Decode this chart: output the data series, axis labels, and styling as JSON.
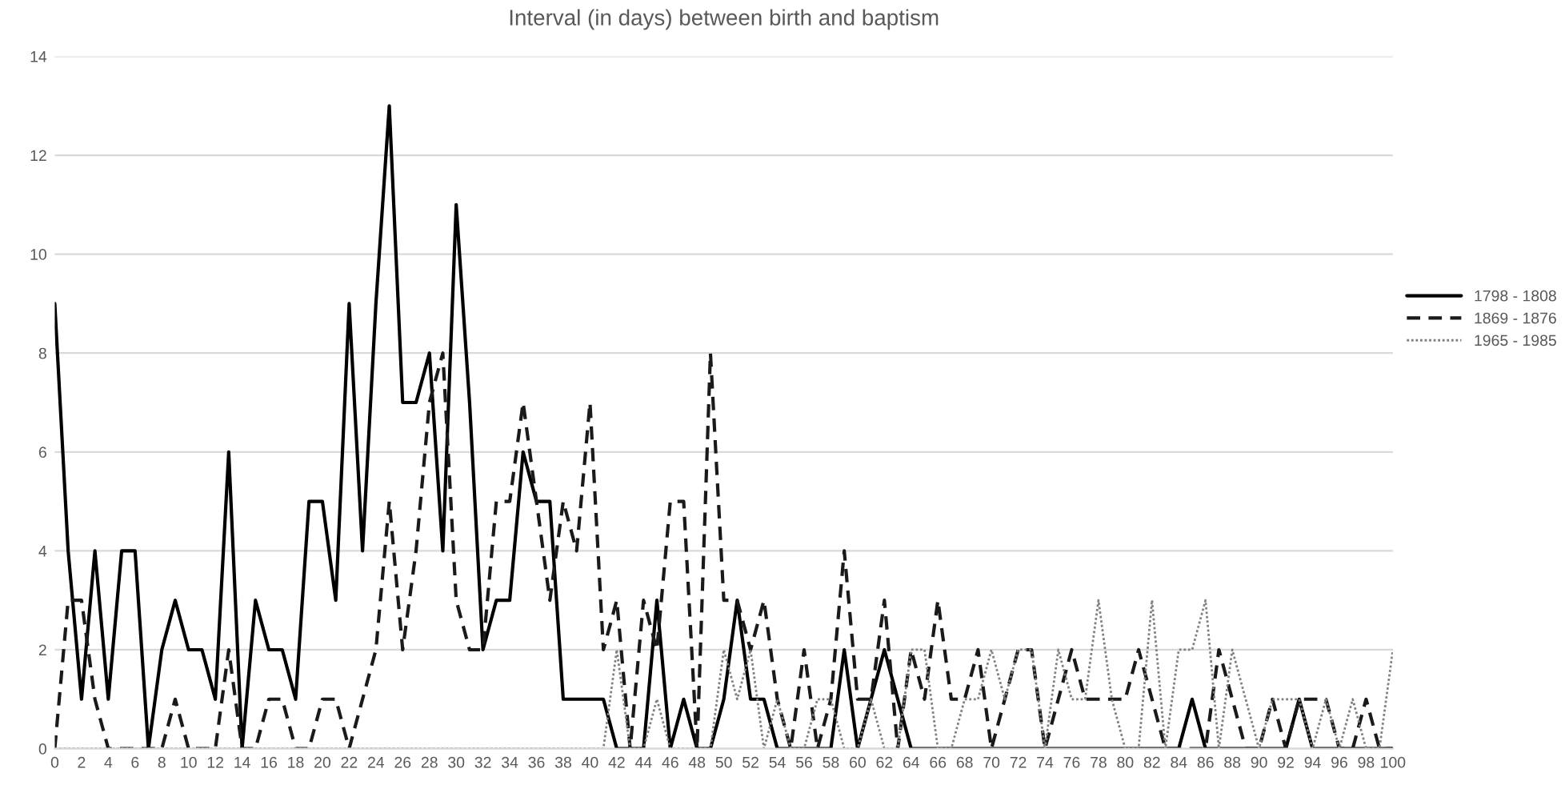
{
  "chart_data": {
    "type": "line",
    "title": "Interval (in days) between birth and baptism",
    "x": [
      0,
      1,
      2,
      3,
      4,
      5,
      6,
      7,
      8,
      9,
      10,
      11,
      12,
      13,
      14,
      15,
      16,
      17,
      18,
      19,
      20,
      21,
      22,
      23,
      24,
      25,
      26,
      27,
      28,
      29,
      30,
      31,
      32,
      33,
      34,
      35,
      36,
      37,
      38,
      39,
      40,
      41,
      42,
      43,
      44,
      45,
      46,
      47,
      48,
      49,
      50,
      51,
      52,
      53,
      54,
      55,
      56,
      57,
      58,
      59,
      60,
      61,
      62,
      63,
      64,
      65,
      66,
      67,
      68,
      69,
      70,
      71,
      72,
      73,
      74,
      75,
      76,
      77,
      78,
      79,
      80,
      81,
      82,
      83,
      84,
      85,
      86,
      87,
      88,
      89,
      90,
      91,
      92,
      93,
      94,
      95,
      96,
      97,
      98,
      99,
      100
    ],
    "series": [
      {
        "name": "1798 - 1808",
        "color": "#000000",
        "line_style": "solid",
        "values": [
          9,
          4,
          1,
          4,
          1,
          4,
          4,
          0,
          2,
          3,
          2,
          2,
          1,
          6,
          0,
          3,
          2,
          2,
          1,
          5,
          5,
          3,
          9,
          4,
          9,
          13,
          7,
          7,
          8,
          4,
          11,
          7,
          2,
          3,
          3,
          6,
          5,
          5,
          1,
          1,
          1,
          1,
          0,
          0,
          0,
          3,
          0,
          1,
          0,
          0,
          1,
          3,
          1,
          1,
          0,
          0,
          0,
          0,
          0,
          2,
          0,
          1,
          2,
          1,
          0,
          0,
          0,
          0,
          0,
          0,
          0,
          0,
          0,
          0,
          0,
          0,
          0,
          0,
          0,
          0,
          0,
          0,
          0,
          0,
          0,
          1,
          0,
          0,
          0,
          0,
          0,
          0,
          0,
          1,
          0,
          0,
          0,
          0,
          0,
          0,
          0
        ]
      },
      {
        "name": "1869 - 1876",
        "color": "#1a1a1a",
        "line_style": "dashed",
        "values": [
          0,
          3,
          3,
          1,
          0,
          0,
          0,
          0,
          0,
          1,
          0,
          0,
          0,
          2,
          0,
          0,
          1,
          1,
          0,
          0,
          1,
          1,
          0,
          1,
          2,
          5,
          2,
          4,
          7,
          8,
          3,
          2,
          2,
          5,
          5,
          7,
          5,
          3,
          5,
          4,
          7,
          2,
          3,
          0,
          3,
          2,
          5,
          5,
          0,
          8,
          3,
          3,
          2,
          3,
          1,
          0,
          2,
          0,
          1,
          4,
          1,
          1,
          3,
          0,
          2,
          1,
          3,
          1,
          1,
          2,
          0,
          1,
          2,
          2,
          0,
          1,
          2,
          1,
          1,
          1,
          1,
          2,
          1,
          0,
          0,
          0,
          0,
          2,
          1,
          0,
          0,
          1,
          0,
          1,
          1,
          1,
          0,
          0,
          1,
          0,
          0
        ]
      },
      {
        "name": "1965 - 1985",
        "color": "#808080",
        "line_style": "dotted",
        "values": [
          0,
          0,
          0,
          0,
          0,
          0,
          0,
          0,
          0,
          0,
          0,
          0,
          0,
          0,
          0,
          0,
          0,
          0,
          0,
          0,
          0,
          0,
          0,
          0,
          0,
          0,
          0,
          0,
          0,
          0,
          0,
          0,
          0,
          0,
          0,
          0,
          0,
          0,
          0,
          0,
          0,
          0,
          2,
          0,
          0,
          1,
          0,
          0,
          0,
          0,
          2,
          1,
          2,
          0,
          1,
          0,
          0,
          1,
          1,
          0,
          0,
          1,
          0,
          0,
          2,
          2,
          0,
          0,
          1,
          1,
          2,
          1,
          2,
          2,
          0,
          2,
          1,
          1,
          3,
          1,
          0,
          0,
          3,
          0,
          2,
          2,
          3,
          0,
          2,
          1,
          0,
          1,
          1,
          1,
          0,
          1,
          0,
          1,
          0,
          0,
          2
        ]
      }
    ],
    "xlim": [
      0,
      100
    ],
    "xticks": [
      0,
      2,
      4,
      6,
      8,
      10,
      12,
      14,
      16,
      18,
      20,
      22,
      24,
      26,
      28,
      30,
      32,
      34,
      36,
      38,
      40,
      42,
      44,
      46,
      48,
      50,
      52,
      54,
      56,
      58,
      60,
      62,
      64,
      66,
      68,
      70,
      72,
      74,
      76,
      78,
      80,
      82,
      84,
      86,
      88,
      90,
      92,
      94,
      96,
      98,
      100
    ],
    "ylim": [
      0,
      14
    ],
    "yticks": [
      0,
      2,
      4,
      6,
      8,
      10,
      12,
      14
    ],
    "grid": "y",
    "legend": "right"
  }
}
